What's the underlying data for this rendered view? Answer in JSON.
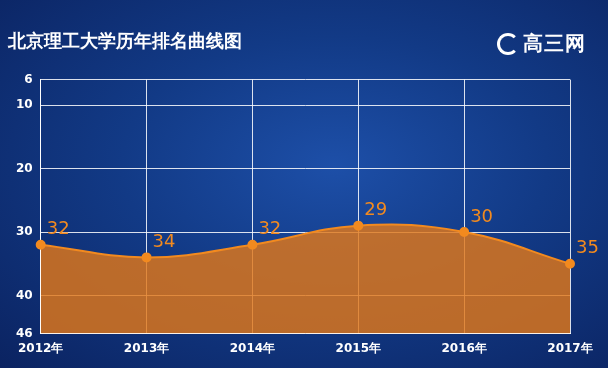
{
  "chart_data": {
    "type": "line",
    "title": "北京理工大学历年排名曲线图",
    "annotations": [
      "高三网"
    ],
    "categories": [
      "2012年",
      "2013年",
      "2014年",
      "2015年",
      "2016年",
      "2017年"
    ],
    "values": [
      32,
      34,
      32,
      29,
      30,
      35
    ],
    "color": "#f28a1f",
    "ylim": [
      46,
      6
    ],
    "yticks": [
      6,
      10,
      20,
      30,
      40,
      46
    ],
    "grid": true,
    "data_labels": true
  }
}
